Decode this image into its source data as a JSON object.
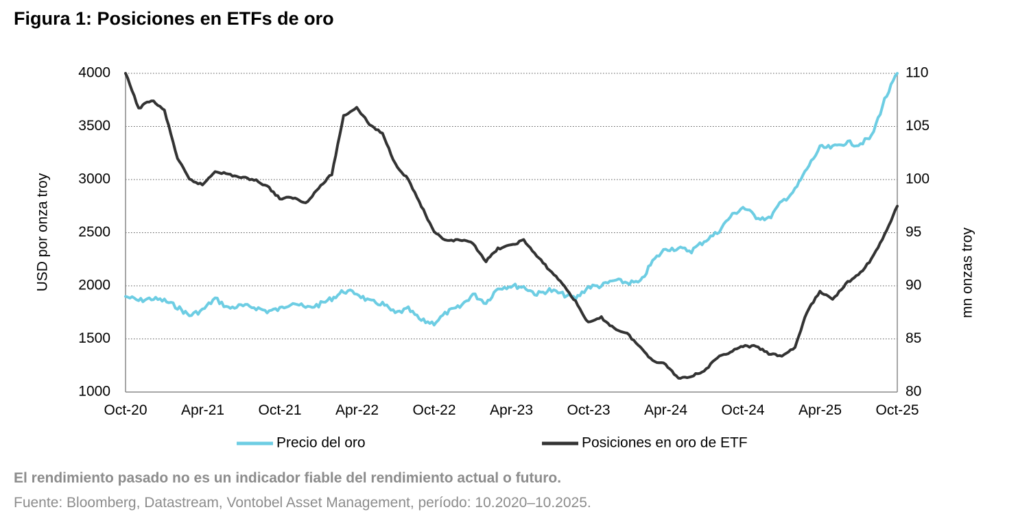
{
  "title": "Figura 1: Posiciones en ETFs de oro",
  "footnotes": {
    "disclaimer": "El rendimiento pasado no es un indicador fiable del rendimiento actual o futuro.",
    "source": "Fuente: Bloomberg, Datastream, Vontobel Asset Management, período: 10.2020–10.2025."
  },
  "chart_data": {
    "type": "line",
    "x_ticks": [
      "Oct-20",
      "Apr-21",
      "Oct-21",
      "Apr-22",
      "Oct-22",
      "Apr-23",
      "Oct-23",
      "Apr-24",
      "Oct-24",
      "Apr-25",
      "Oct-25"
    ],
    "y_left": {
      "label": "USD por onza troy",
      "ticks": [
        "4000",
        "3500",
        "3000",
        "2500",
        "2000",
        "1500",
        "1000"
      ],
      "range": [
        1000,
        4000
      ]
    },
    "y_right": {
      "label": "mn onzas troy",
      "ticks": [
        "110",
        "105",
        "100",
        "95",
        "90",
        "85",
        "80"
      ],
      "range": [
        80,
        110
      ]
    },
    "grid": "horizontal dotted",
    "legend_position": "bottom",
    "series": [
      {
        "name": "Precio del oro",
        "axis": "left",
        "color": "#6dcde3",
        "points": [
          [
            "2020-10",
            1900
          ],
          [
            "2020-11",
            1860
          ],
          [
            "2020-12",
            1880
          ],
          [
            "2021-01",
            1860
          ],
          [
            "2021-02",
            1800
          ],
          [
            "2021-03",
            1720
          ],
          [
            "2021-04",
            1770
          ],
          [
            "2021-05",
            1880
          ],
          [
            "2021-06",
            1790
          ],
          [
            "2021-07",
            1810
          ],
          [
            "2021-08",
            1800
          ],
          [
            "2021-09",
            1760
          ],
          [
            "2021-10",
            1780
          ],
          [
            "2021-11",
            1850
          ],
          [
            "2021-12",
            1790
          ],
          [
            "2022-01",
            1820
          ],
          [
            "2022-02",
            1880
          ],
          [
            "2022-03",
            1950
          ],
          [
            "2022-04",
            1930
          ],
          [
            "2022-05",
            1850
          ],
          [
            "2022-06",
            1830
          ],
          [
            "2022-07",
            1740
          ],
          [
            "2022-08",
            1780
          ],
          [
            "2022-09",
            1670
          ],
          [
            "2022-10",
            1650
          ],
          [
            "2022-11",
            1750
          ],
          [
            "2022-12",
            1800
          ],
          [
            "2023-01",
            1920
          ],
          [
            "2023-02",
            1840
          ],
          [
            "2023-03",
            1980
          ],
          [
            "2023-04",
            2000
          ],
          [
            "2023-05",
            1990
          ],
          [
            "2023-06",
            1920
          ],
          [
            "2023-07",
            1960
          ],
          [
            "2023-08",
            1920
          ],
          [
            "2023-09",
            1880
          ],
          [
            "2023-10",
            1990
          ],
          [
            "2023-11",
            2000
          ],
          [
            "2023-12",
            2050
          ],
          [
            "2024-01",
            2030
          ],
          [
            "2024-02",
            2030
          ],
          [
            "2024-03",
            2230
          ],
          [
            "2024-04",
            2350
          ],
          [
            "2024-05",
            2350
          ],
          [
            "2024-06",
            2330
          ],
          [
            "2024-07",
            2420
          ],
          [
            "2024-08",
            2500
          ],
          [
            "2024-09",
            2650
          ],
          [
            "2024-10",
            2740
          ],
          [
            "2024-11",
            2650
          ],
          [
            "2024-12",
            2630
          ],
          [
            "2025-01",
            2790
          ],
          [
            "2025-02",
            2900
          ],
          [
            "2025-03",
            3100
          ],
          [
            "2025-04",
            3300
          ],
          [
            "2025-05",
            3300
          ],
          [
            "2025-06",
            3350
          ],
          [
            "2025-07",
            3330
          ],
          [
            "2025-08",
            3400
          ],
          [
            "2025-09",
            3750
          ],
          [
            "2025-10",
            4000
          ]
        ]
      },
      {
        "name": "Posiciones en oro de ETF",
        "axis": "right",
        "color": "#333333",
        "points": [
          [
            "2020-10",
            110
          ],
          [
            "2020-11",
            106.7
          ],
          [
            "2020-12",
            107.5
          ],
          [
            "2021-01",
            106.5
          ],
          [
            "2021-02",
            102
          ],
          [
            "2021-03",
            100
          ],
          [
            "2021-04",
            99.5
          ],
          [
            "2021-05",
            100.8
          ],
          [
            "2021-06",
            100.5
          ],
          [
            "2021-07",
            100.2
          ],
          [
            "2021-08",
            100
          ],
          [
            "2021-09",
            99.4
          ],
          [
            "2021-10",
            98.2
          ],
          [
            "2021-11",
            98.3
          ],
          [
            "2021-12",
            97.8
          ],
          [
            "2022-01",
            99.2
          ],
          [
            "2022-02",
            100.5
          ],
          [
            "2022-03",
            106
          ],
          [
            "2022-04",
            106.8
          ],
          [
            "2022-05",
            105.2
          ],
          [
            "2022-06",
            104.3
          ],
          [
            "2022-07",
            101.5
          ],
          [
            "2022-08",
            100
          ],
          [
            "2022-09",
            97.5
          ],
          [
            "2022-10",
            95
          ],
          [
            "2022-11",
            94.2
          ],
          [
            "2022-12",
            94.3
          ],
          [
            "2023-01",
            94
          ],
          [
            "2023-02",
            92.3
          ],
          [
            "2023-03",
            93.5
          ],
          [
            "2023-04",
            93.8
          ],
          [
            "2023-05",
            94.3
          ],
          [
            "2023-06",
            92.8
          ],
          [
            "2023-07",
            91.5
          ],
          [
            "2023-08",
            90.2
          ],
          [
            "2023-09",
            88.5
          ],
          [
            "2023-10",
            86.5
          ],
          [
            "2023-11",
            87
          ],
          [
            "2023-12",
            86
          ],
          [
            "2024-01",
            85.5
          ],
          [
            "2024-02",
            84.2
          ],
          [
            "2024-03",
            83
          ],
          [
            "2024-04",
            82.6
          ],
          [
            "2024-05",
            81.3
          ],
          [
            "2024-06",
            81.5
          ],
          [
            "2024-07",
            82
          ],
          [
            "2024-08",
            83.2
          ],
          [
            "2024-09",
            83.8
          ],
          [
            "2024-10",
            84.3
          ],
          [
            "2024-11",
            84.3
          ],
          [
            "2024-12",
            83.6
          ],
          [
            "2025-01",
            83.4
          ],
          [
            "2025-02",
            84.2
          ],
          [
            "2025-03",
            87.5
          ],
          [
            "2025-04",
            89.5
          ],
          [
            "2025-05",
            88.7
          ],
          [
            "2025-06",
            90.2
          ],
          [
            "2025-07",
            91
          ],
          [
            "2025-08",
            92.5
          ],
          [
            "2025-09",
            94.8
          ],
          [
            "2025-10",
            97.5
          ]
        ]
      }
    ]
  }
}
